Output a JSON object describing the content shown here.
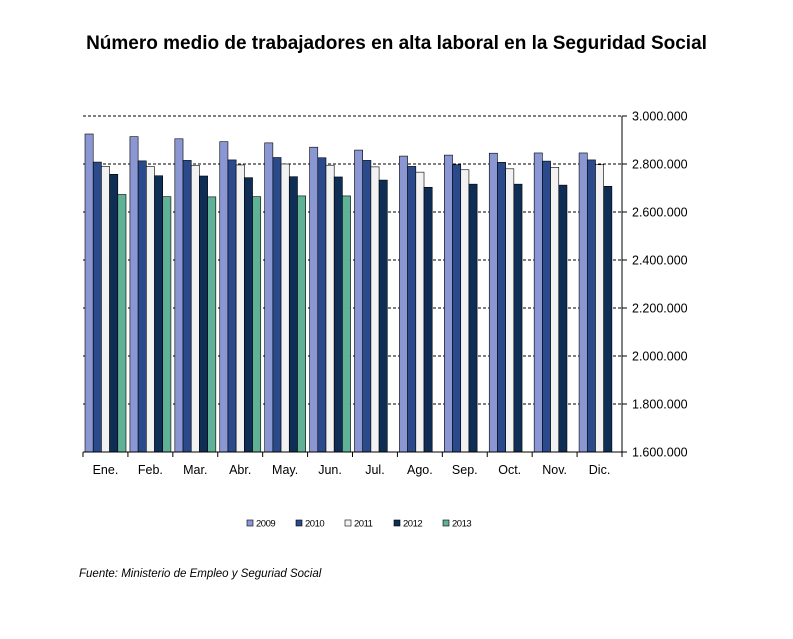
{
  "title": "Número medio de trabajadores en alta laboral en la Seguridad Social",
  "source": "Fuente: Ministerio de Empleo y Seguriad Social",
  "colors": {
    "2009": "#8a97d3",
    "2010": "#2a4a8c",
    "2011": "#f2f2f2",
    "2012": "#0f2e55",
    "2013": "#5fb296"
  },
  "chart_data": {
    "type": "bar",
    "title": "Número medio de trabajadores en alta laboral en la Seguridad Social",
    "categories": [
      "Ene.",
      "Feb.",
      "Mar.",
      "Abr.",
      "May.",
      "Jun.",
      "Jul.",
      "Ago.",
      "Sep.",
      "Oct.",
      "Nov.",
      "Dic."
    ],
    "series": [
      {
        "name": "2009",
        "values": [
          2925000,
          2914000,
          2905000,
          2893000,
          2888000,
          2870000,
          2858000,
          2833000,
          2837000,
          2845000,
          2846000,
          2846000
        ]
      },
      {
        "name": "2010",
        "values": [
          2808000,
          2813000,
          2815000,
          2817000,
          2827000,
          2826000,
          2815000,
          2790000,
          2797000,
          2807000,
          2812000,
          2817000
        ]
      },
      {
        "name": "2011",
        "values": [
          2790000,
          2789000,
          2794000,
          2796000,
          2800000,
          2795000,
          2788000,
          2766000,
          2776000,
          2780000,
          2786000,
          2797000
        ]
      },
      {
        "name": "2012",
        "values": [
          2757000,
          2751000,
          2750000,
          2743000,
          2747000,
          2746000,
          2733000,
          2703000,
          2716000,
          2716000,
          2712000,
          2707000
        ]
      },
      {
        "name": "2013",
        "values": [
          2673000,
          2664000,
          2663000,
          2664000,
          2667000,
          2667000,
          null,
          null,
          null,
          null,
          null,
          null
        ]
      }
    ],
    "ylim": [
      1600000,
      3000000
    ],
    "yticks": [
      "1.600.000",
      "1.800.000",
      "2.000.000",
      "2.200.000",
      "2.400.000",
      "2.600.000",
      "2.800.000",
      "3.000.000"
    ],
    "ytick_values": [
      1600000,
      1800000,
      2000000,
      2200000,
      2400000,
      2600000,
      2800000,
      3000000
    ],
    "grid": "dashed horizontal",
    "yaxis_side": "right",
    "legend_position": "bottom"
  }
}
